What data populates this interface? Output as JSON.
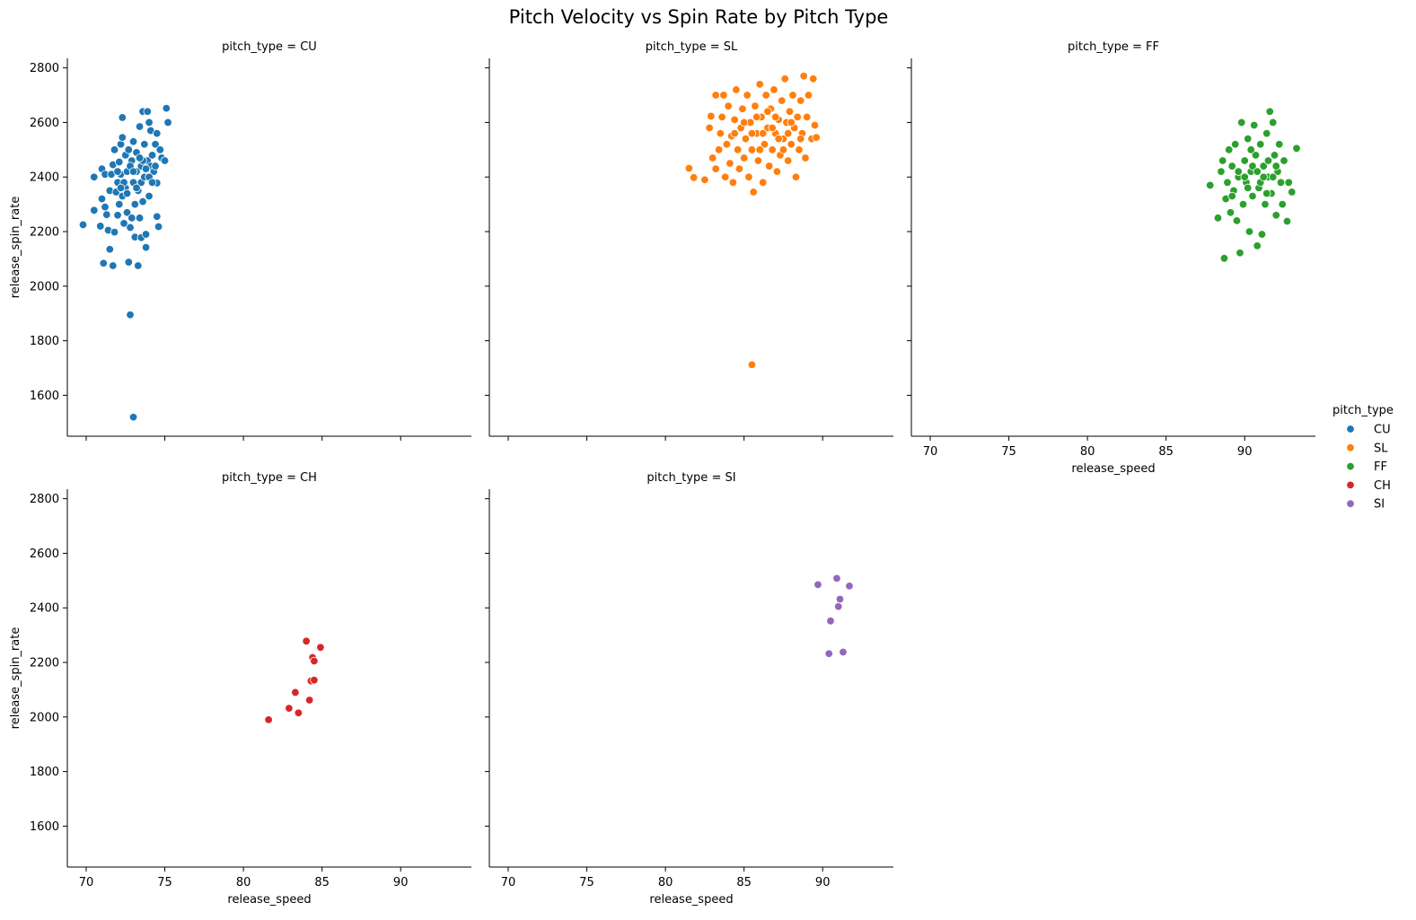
{
  "chart_data": {
    "type": "scatter",
    "title": "Pitch Velocity vs Spin Rate by Pitch Type",
    "xlabel": "release_speed",
    "ylabel": "release_spin_rate",
    "xlim": [
      68.8,
      94.5
    ],
    "ylim": [
      1450,
      2835
    ],
    "xticks": [
      70,
      75,
      80,
      85,
      90
    ],
    "yticks": [
      1600,
      1800,
      2000,
      2200,
      2400,
      2600,
      2800
    ],
    "grid": false,
    "legend": {
      "title": "pitch_type",
      "placement": "right"
    },
    "facet_title_prefix": "pitch_type = ",
    "series": [
      {
        "name": "CU",
        "color": "#1f77b4",
        "points": [
          [
            69.8,
            2225
          ],
          [
            70.5,
            2400
          ],
          [
            70.5,
            2278
          ],
          [
            70.9,
            2220
          ],
          [
            71.0,
            2430
          ],
          [
            71.0,
            2320
          ],
          [
            71.1,
            2084
          ],
          [
            71.2,
            2410
          ],
          [
            71.2,
            2290
          ],
          [
            71.3,
            2262
          ],
          [
            71.4,
            2205
          ],
          [
            71.5,
            2135
          ],
          [
            71.5,
            2350
          ],
          [
            71.6,
            2410
          ],
          [
            71.7,
            2075
          ],
          [
            71.7,
            2445
          ],
          [
            71.8,
            2500
          ],
          [
            71.8,
            2198
          ],
          [
            71.9,
            2345
          ],
          [
            72.0,
            2260
          ],
          [
            72.0,
            2380
          ],
          [
            72.1,
            2455
          ],
          [
            72.1,
            2300
          ],
          [
            72.2,
            2520
          ],
          [
            72.2,
            2410
          ],
          [
            72.3,
            2618
          ],
          [
            72.3,
            2545
          ],
          [
            72.3,
            2330
          ],
          [
            72.4,
            2230
          ],
          [
            72.5,
            2480
          ],
          [
            72.5,
            2360
          ],
          [
            72.6,
            2270
          ],
          [
            72.6,
            2420
          ],
          [
            72.7,
            2500
          ],
          [
            72.7,
            2088
          ],
          [
            72.8,
            1895
          ],
          [
            72.8,
            2215
          ],
          [
            72.9,
            2250
          ],
          [
            72.9,
            2460
          ],
          [
            73.0,
            1520
          ],
          [
            73.0,
            2380
          ],
          [
            73.0,
            2530
          ],
          [
            73.1,
            2180
          ],
          [
            73.1,
            2300
          ],
          [
            73.2,
            2420
          ],
          [
            73.2,
            2490
          ],
          [
            73.3,
            2075
          ],
          [
            73.3,
            2350
          ],
          [
            73.4,
            2585
          ],
          [
            73.4,
            2250
          ],
          [
            73.5,
            2178
          ],
          [
            73.5,
            2440
          ],
          [
            73.5,
            2380
          ],
          [
            73.6,
            2640
          ],
          [
            73.6,
            2310
          ],
          [
            73.7,
            2520
          ],
          [
            73.7,
            2400
          ],
          [
            73.8,
            2142
          ],
          [
            73.8,
            2190
          ],
          [
            73.9,
            2640
          ],
          [
            73.9,
            2460
          ],
          [
            74.0,
            2600
          ],
          [
            74.0,
            2330
          ],
          [
            74.1,
            2570
          ],
          [
            74.1,
            2440
          ],
          [
            74.2,
            2480
          ],
          [
            74.3,
            2420
          ],
          [
            74.4,
            2520
          ],
          [
            74.5,
            2378
          ],
          [
            74.5,
            2560
          ],
          [
            74.5,
            2255
          ],
          [
            74.6,
            2218
          ],
          [
            74.7,
            2500
          ],
          [
            74.8,
            2470
          ],
          [
            75.0,
            2460
          ],
          [
            75.1,
            2652
          ],
          [
            75.2,
            2600
          ],
          [
            72.0,
            2420
          ],
          [
            72.4,
            2380
          ],
          [
            72.8,
            2440
          ],
          [
            73.2,
            2360
          ],
          [
            73.6,
            2460
          ],
          [
            74.0,
            2400
          ],
          [
            74.4,
            2440
          ],
          [
            72.6,
            2340
          ],
          [
            73.4,
            2470
          ],
          [
            73.8,
            2430
          ],
          [
            74.2,
            2380
          ],
          [
            72.2,
            2360
          ],
          [
            73.0,
            2420
          ]
        ]
      },
      {
        "name": "SL",
        "color": "#ff7f0e",
        "points": [
          [
            81.5,
            2432
          ],
          [
            81.8,
            2398
          ],
          [
            82.5,
            2390
          ],
          [
            82.8,
            2580
          ],
          [
            82.9,
            2623
          ],
          [
            83.0,
            2470
          ],
          [
            83.2,
            2700
          ],
          [
            83.2,
            2430
          ],
          [
            83.4,
            2500
          ],
          [
            83.5,
            2560
          ],
          [
            83.6,
            2620
          ],
          [
            83.7,
            2700
          ],
          [
            83.8,
            2400
          ],
          [
            83.9,
            2520
          ],
          [
            84.0,
            2660
          ],
          [
            84.1,
            2450
          ],
          [
            84.2,
            2550
          ],
          [
            84.3,
            2380
          ],
          [
            84.4,
            2610
          ],
          [
            84.5,
            2720
          ],
          [
            84.6,
            2500
          ],
          [
            84.7,
            2430
          ],
          [
            84.8,
            2580
          ],
          [
            84.9,
            2650
          ],
          [
            85.0,
            2470
          ],
          [
            85.1,
            2540
          ],
          [
            85.2,
            2700
          ],
          [
            85.3,
            2400
          ],
          [
            85.4,
            2600
          ],
          [
            85.5,
            2500
          ],
          [
            85.5,
            1712
          ],
          [
            85.6,
            2345
          ],
          [
            85.7,
            2660
          ],
          [
            85.8,
            2560
          ],
          [
            85.9,
            2460
          ],
          [
            86.0,
            2740
          ],
          [
            86.1,
            2620
          ],
          [
            86.2,
            2380
          ],
          [
            86.3,
            2520
          ],
          [
            86.4,
            2700
          ],
          [
            86.5,
            2580
          ],
          [
            86.6,
            2440
          ],
          [
            86.7,
            2650
          ],
          [
            86.8,
            2500
          ],
          [
            86.9,
            2720
          ],
          [
            87.0,
            2560
          ],
          [
            87.1,
            2420
          ],
          [
            87.2,
            2610
          ],
          [
            87.3,
            2480
          ],
          [
            87.4,
            2680
          ],
          [
            87.5,
            2540
          ],
          [
            87.6,
            2760
          ],
          [
            87.7,
            2600
          ],
          [
            87.8,
            2460
          ],
          [
            87.9,
            2640
          ],
          [
            88.0,
            2520
          ],
          [
            88.1,
            2700
          ],
          [
            88.2,
            2580
          ],
          [
            88.3,
            2400
          ],
          [
            88.4,
            2620
          ],
          [
            88.5,
            2500
          ],
          [
            88.6,
            2680
          ],
          [
            88.7,
            2560
          ],
          [
            88.8,
            2770
          ],
          [
            88.9,
            2470
          ],
          [
            89.0,
            2620
          ],
          [
            89.1,
            2700
          ],
          [
            89.3,
            2540
          ],
          [
            89.4,
            2760
          ],
          [
            89.5,
            2590
          ],
          [
            89.6,
            2545
          ],
          [
            85.0,
            2600
          ],
          [
            85.5,
            2560
          ],
          [
            86.0,
            2500
          ],
          [
            86.5,
            2640
          ],
          [
            87.0,
            2620
          ],
          [
            87.5,
            2500
          ],
          [
            88.0,
            2600
          ],
          [
            86.2,
            2560
          ],
          [
            87.2,
            2540
          ],
          [
            85.8,
            2620
          ],
          [
            86.8,
            2580
          ],
          [
            84.4,
            2560
          ],
          [
            88.6,
            2540
          ],
          [
            87.8,
            2560
          ]
        ]
      },
      {
        "name": "FF",
        "color": "#2ca02c",
        "points": [
          [
            87.8,
            2370
          ],
          [
            88.3,
            2250
          ],
          [
            88.5,
            2420
          ],
          [
            88.6,
            2460
          ],
          [
            88.7,
            2102
          ],
          [
            88.8,
            2320
          ],
          [
            88.9,
            2380
          ],
          [
            89.0,
            2500
          ],
          [
            89.1,
            2270
          ],
          [
            89.2,
            2440
          ],
          [
            89.3,
            2350
          ],
          [
            89.4,
            2520
          ],
          [
            89.5,
            2240
          ],
          [
            89.6,
            2400
          ],
          [
            89.7,
            2122
          ],
          [
            89.8,
            2600
          ],
          [
            89.9,
            2300
          ],
          [
            90.0,
            2460
          ],
          [
            90.1,
            2380
          ],
          [
            90.2,
            2540
          ],
          [
            90.3,
            2200
          ],
          [
            90.4,
            2420
          ],
          [
            90.5,
            2330
          ],
          [
            90.6,
            2590
          ],
          [
            90.7,
            2480
          ],
          [
            90.8,
            2148
          ],
          [
            90.9,
            2360
          ],
          [
            91.0,
            2520
          ],
          [
            91.1,
            2190
          ],
          [
            91.2,
            2440
          ],
          [
            91.3,
            2300
          ],
          [
            91.4,
            2560
          ],
          [
            91.5,
            2400
          ],
          [
            91.6,
            2640
          ],
          [
            91.7,
            2340
          ],
          [
            91.8,
            2600
          ],
          [
            91.9,
            2480
          ],
          [
            92.0,
            2260
          ],
          [
            92.1,
            2420
          ],
          [
            92.2,
            2520
          ],
          [
            92.3,
            2380
          ],
          [
            92.4,
            2300
          ],
          [
            92.5,
            2460
          ],
          [
            92.7,
            2238
          ],
          [
            92.8,
            2380
          ],
          [
            93.0,
            2345
          ],
          [
            93.3,
            2505
          ],
          [
            90.0,
            2400
          ],
          [
            90.5,
            2440
          ],
          [
            91.0,
            2380
          ],
          [
            91.5,
            2460
          ],
          [
            90.2,
            2360
          ],
          [
            91.2,
            2400
          ],
          [
            90.8,
            2420
          ],
          [
            89.6,
            2420
          ],
          [
            91.8,
            2400
          ],
          [
            90.4,
            2500
          ],
          [
            91.4,
            2340
          ],
          [
            89.2,
            2330
          ],
          [
            92.0,
            2440
          ]
        ]
      },
      {
        "name": "CH",
        "color": "#d62728",
        "points": [
          [
            81.6,
            1990
          ],
          [
            82.9,
            2032
          ],
          [
            83.3,
            2090
          ],
          [
            83.5,
            2015
          ],
          [
            84.0,
            2278
          ],
          [
            84.2,
            2062
          ],
          [
            84.3,
            2132
          ],
          [
            84.4,
            2218
          ],
          [
            84.5,
            2205
          ],
          [
            84.5,
            2135
          ],
          [
            84.9,
            2255
          ]
        ]
      },
      {
        "name": "SI",
        "color": "#9467bd",
        "points": [
          [
            89.7,
            2485
          ],
          [
            90.4,
            2232
          ],
          [
            90.5,
            2352
          ],
          [
            90.9,
            2508
          ],
          [
            91.0,
            2405
          ],
          [
            91.1,
            2432
          ],
          [
            91.3,
            2238
          ],
          [
            91.7,
            2480
          ]
        ]
      }
    ]
  }
}
